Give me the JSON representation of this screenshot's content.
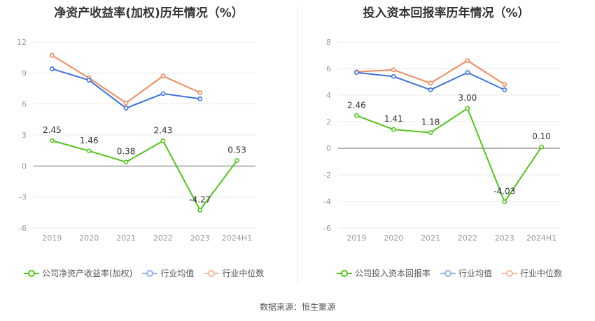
{
  "colors": {
    "company": "#52c41a",
    "avg": "#3f73de",
    "median": "#f08a5d",
    "grid": "#e8e8e8",
    "axis": "#999999",
    "label": "#333333"
  },
  "source": "数据来源：恒生聚源",
  "chart_data": [
    {
      "type": "line",
      "title": "净资产收益率(加权)历年情况（%）",
      "categories": [
        "2019",
        "2020",
        "2021",
        "2022",
        "2023",
        "2024H1"
      ],
      "ylim": [
        -6,
        12
      ],
      "yticks": [
        -6,
        -3,
        0,
        3,
        6,
        9,
        12
      ],
      "grid": true,
      "legend_position": "bottom",
      "series": [
        {
          "name": "公司净资产收益率(加权)",
          "key": "company",
          "values": [
            2.45,
            1.46,
            0.38,
            2.43,
            -4.27,
            0.53
          ],
          "labels": [
            "2.45",
            "1.46",
            "0.38",
            "2.43",
            "-4.27",
            "0.53"
          ]
        },
        {
          "name": "行业均值",
          "key": "avg",
          "values": [
            9.4,
            8.3,
            5.6,
            7.0,
            6.5,
            null
          ]
        },
        {
          "name": "行业中位数",
          "key": "median",
          "values": [
            10.7,
            8.5,
            6.1,
            8.7,
            7.1,
            null
          ]
        }
      ]
    },
    {
      "type": "line",
      "title": "投入资本回报率历年情况（%）",
      "categories": [
        "2019",
        "2020",
        "2021",
        "2022",
        "2023",
        "2024H1"
      ],
      "ylim": [
        -6,
        8
      ],
      "yticks": [
        -6,
        -4,
        -2,
        0,
        2,
        4,
        6,
        8
      ],
      "grid": true,
      "legend_position": "bottom",
      "series": [
        {
          "name": "公司投入资本回报率",
          "key": "company",
          "values": [
            2.46,
            1.41,
            1.18,
            3.0,
            -4.03,
            0.1
          ],
          "labels": [
            "2.46",
            "1.41",
            "1.18",
            "3.00",
            "-4.03",
            "0.10"
          ]
        },
        {
          "name": "行业均值",
          "key": "avg",
          "values": [
            5.7,
            5.4,
            4.4,
            5.7,
            4.4,
            null
          ]
        },
        {
          "name": "行业中位数",
          "key": "median",
          "values": [
            5.75,
            5.9,
            4.9,
            6.6,
            4.8,
            null
          ]
        }
      ]
    }
  ]
}
